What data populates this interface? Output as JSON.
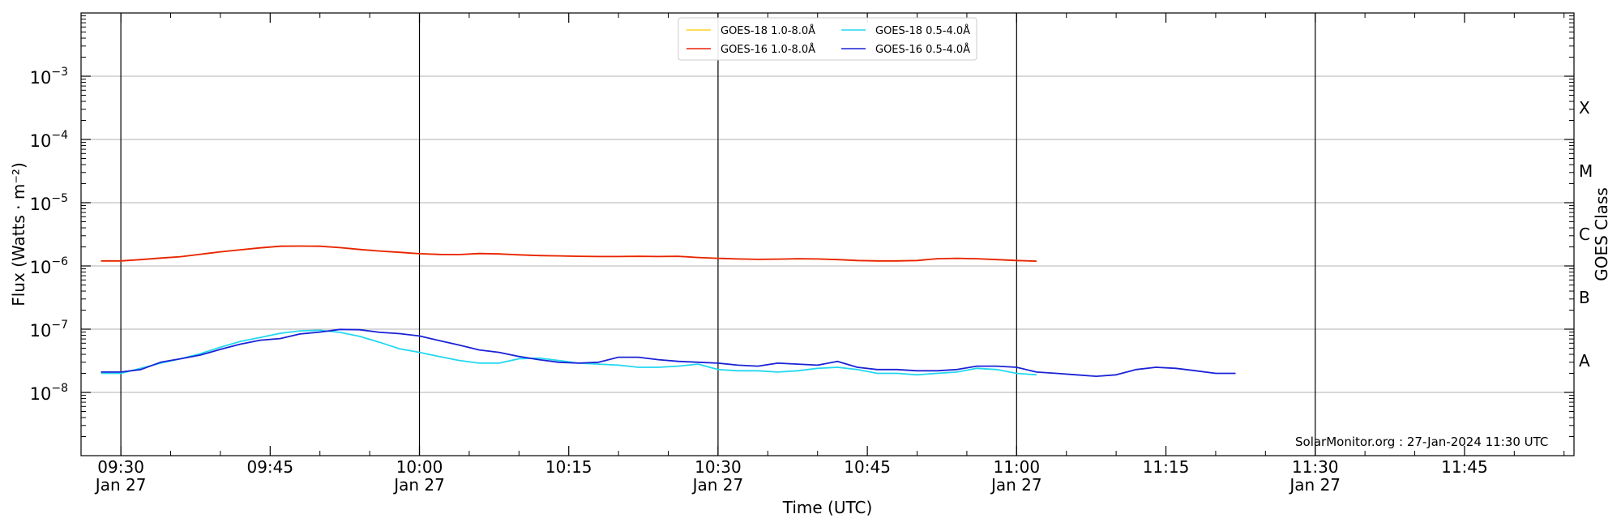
{
  "chart_data": {
    "type": "line",
    "title": "",
    "xlabel": "Time (UTC)",
    "ylabel": "Flux (Watts · m⁻²)",
    "ylabel_right": "GOES Class",
    "yscale": "log",
    "ylim": [
      1e-09,
      0.01
    ],
    "xlim": [
      "09:26",
      "11:56"
    ],
    "grid": "horizontal at decades",
    "legend_placement": "top-center",
    "y_ticks": [
      {
        "exp": -8,
        "base": "10",
        "power": "−8"
      },
      {
        "exp": -7,
        "base": "10",
        "power": "−7"
      },
      {
        "exp": -6,
        "base": "10",
        "power": "−6"
      },
      {
        "exp": -5,
        "base": "10",
        "power": "−5"
      },
      {
        "exp": -4,
        "base": "10",
        "power": "−4"
      },
      {
        "exp": -3,
        "base": "10",
        "power": "−3"
      }
    ],
    "x_ticks": [
      {
        "t": "09:30",
        "label": "09:30",
        "date": "Jan 27"
      },
      {
        "t": "09:45",
        "label": "09:45",
        "date": ""
      },
      {
        "t": "10:00",
        "label": "10:00",
        "date": "Jan 27"
      },
      {
        "t": "10:15",
        "label": "10:15",
        "date": ""
      },
      {
        "t": "10:30",
        "label": "10:30",
        "date": "Jan 27"
      },
      {
        "t": "10:45",
        "label": "10:45",
        "date": ""
      },
      {
        "t": "11:00",
        "label": "11:00",
        "date": "Jan 27"
      },
      {
        "t": "11:15",
        "label": "11:15",
        "date": ""
      },
      {
        "t": "11:30",
        "label": "11:30",
        "date": "Jan 27"
      },
      {
        "t": "11:45",
        "label": "11:45",
        "date": ""
      }
    ],
    "vertical_markers": [
      "09:30",
      "10:00",
      "10:30",
      "11:00",
      "11:30"
    ],
    "goes_classes": [
      {
        "label": "A",
        "flux": 3.16e-08
      },
      {
        "label": "B",
        "flux": 3.16e-07
      },
      {
        "label": "C",
        "flux": 3.16e-06
      },
      {
        "label": "M",
        "flux": 3.16e-05
      },
      {
        "label": "X",
        "flux": 0.000316
      }
    ],
    "annotation": "SolarMonitor.org : 27-Jan-2024 11:30 UTC",
    "series": [
      {
        "name": "GOES-18 1.0-8.0Å",
        "color": "#ffd21f",
        "points": [
          [
            "09:28",
            1.2e-06
          ],
          [
            "09:30",
            1.2e-06
          ],
          [
            "09:32",
            1.26e-06
          ],
          [
            "09:34",
            1.33e-06
          ],
          [
            "09:36",
            1.4e-06
          ],
          [
            "09:38",
            1.53e-06
          ],
          [
            "09:40",
            1.67e-06
          ],
          [
            "09:42",
            1.8e-06
          ],
          [
            "09:44",
            1.93e-06
          ],
          [
            "09:46",
            2.05e-06
          ],
          [
            "09:48",
            2.06e-06
          ],
          [
            "09:50",
            2.05e-06
          ],
          [
            "09:52",
            1.95e-06
          ],
          [
            "09:54",
            1.82e-06
          ],
          [
            "09:56",
            1.72e-06
          ],
          [
            "09:58",
            1.64e-06
          ],
          [
            "10:00",
            1.56e-06
          ],
          [
            "10:02",
            1.52e-06
          ],
          [
            "10:04",
            1.51e-06
          ],
          [
            "10:06",
            1.57e-06
          ],
          [
            "10:08",
            1.55e-06
          ],
          [
            "10:10",
            1.5e-06
          ],
          [
            "10:12",
            1.46e-06
          ],
          [
            "10:14",
            1.44e-06
          ],
          [
            "10:16",
            1.42e-06
          ],
          [
            "10:18",
            1.41e-06
          ],
          [
            "10:20",
            1.41e-06
          ],
          [
            "10:22",
            1.42e-06
          ],
          [
            "10:24",
            1.41e-06
          ],
          [
            "10:26",
            1.42e-06
          ],
          [
            "10:28",
            1.36e-06
          ],
          [
            "10:30",
            1.32e-06
          ],
          [
            "10:32",
            1.29e-06
          ],
          [
            "10:34",
            1.27e-06
          ],
          [
            "10:36",
            1.28e-06
          ],
          [
            "10:38",
            1.3e-06
          ],
          [
            "10:40",
            1.29e-06
          ],
          [
            "10:42",
            1.26e-06
          ],
          [
            "10:44",
            1.22e-06
          ],
          [
            "10:46",
            1.2e-06
          ],
          [
            "10:48",
            1.2e-06
          ],
          [
            "10:50",
            1.22e-06
          ],
          [
            "10:52",
            1.3e-06
          ],
          [
            "10:54",
            1.32e-06
          ],
          [
            "10:56",
            1.3e-06
          ],
          [
            "10:58",
            1.26e-06
          ],
          [
            "11:00",
            1.22e-06
          ],
          [
            "11:02",
            1.19e-06
          ]
        ]
      },
      {
        "name": "GOES-16 1.0-8.0Å",
        "color": "#e8220a",
        "points": [
          [
            "09:28",
            1.2e-06
          ],
          [
            "09:30",
            1.2e-06
          ],
          [
            "09:32",
            1.26e-06
          ],
          [
            "09:34",
            1.33e-06
          ],
          [
            "09:36",
            1.4e-06
          ],
          [
            "09:38",
            1.53e-06
          ],
          [
            "09:40",
            1.67e-06
          ],
          [
            "09:42",
            1.8e-06
          ],
          [
            "09:44",
            1.93e-06
          ],
          [
            "09:46",
            2.05e-06
          ],
          [
            "09:48",
            2.06e-06
          ],
          [
            "09:50",
            2.05e-06
          ],
          [
            "09:52",
            1.95e-06
          ],
          [
            "09:54",
            1.82e-06
          ],
          [
            "09:56",
            1.72e-06
          ],
          [
            "09:58",
            1.64e-06
          ],
          [
            "10:00",
            1.56e-06
          ],
          [
            "10:02",
            1.52e-06
          ],
          [
            "10:04",
            1.51e-06
          ],
          [
            "10:06",
            1.57e-06
          ],
          [
            "10:08",
            1.55e-06
          ],
          [
            "10:10",
            1.5e-06
          ],
          [
            "10:12",
            1.46e-06
          ],
          [
            "10:14",
            1.44e-06
          ],
          [
            "10:16",
            1.42e-06
          ],
          [
            "10:18",
            1.41e-06
          ],
          [
            "10:20",
            1.41e-06
          ],
          [
            "10:22",
            1.42e-06
          ],
          [
            "10:24",
            1.41e-06
          ],
          [
            "10:26",
            1.42e-06
          ],
          [
            "10:28",
            1.36e-06
          ],
          [
            "10:30",
            1.32e-06
          ],
          [
            "10:32",
            1.29e-06
          ],
          [
            "10:34",
            1.27e-06
          ],
          [
            "10:36",
            1.28e-06
          ],
          [
            "10:38",
            1.3e-06
          ],
          [
            "10:40",
            1.29e-06
          ],
          [
            "10:42",
            1.26e-06
          ],
          [
            "10:44",
            1.22e-06
          ],
          [
            "10:46",
            1.2e-06
          ],
          [
            "10:48",
            1.2e-06
          ],
          [
            "10:50",
            1.22e-06
          ],
          [
            "10:52",
            1.3e-06
          ],
          [
            "10:54",
            1.32e-06
          ],
          [
            "10:56",
            1.3e-06
          ],
          [
            "10:58",
            1.26e-06
          ],
          [
            "11:00",
            1.22e-06
          ],
          [
            "11:02",
            1.19e-06
          ]
        ]
      },
      {
        "name": "GOES-18 0.5-4.0Å",
        "color": "#22d8f0",
        "points": [
          [
            "09:28",
            2e-08
          ],
          [
            "09:30",
            2e-08
          ],
          [
            "09:32",
            2.4e-08
          ],
          [
            "09:34",
            2.9e-08
          ],
          [
            "09:36",
            3.4e-08
          ],
          [
            "09:38",
            4.1e-08
          ],
          [
            "09:40",
            5.2e-08
          ],
          [
            "09:42",
            6.4e-08
          ],
          [
            "09:44",
            7.4e-08
          ],
          [
            "09:46",
            8.6e-08
          ],
          [
            "09:48",
            9.4e-08
          ],
          [
            "09:50",
            9.6e-08
          ],
          [
            "09:52",
            8.9e-08
          ],
          [
            "09:54",
            7.7e-08
          ],
          [
            "09:56",
            6.2e-08
          ],
          [
            "09:58",
            4.9e-08
          ],
          [
            "10:00",
            4.3e-08
          ],
          [
            "10:02",
            3.7e-08
          ],
          [
            "10:04",
            3.2e-08
          ],
          [
            "10:06",
            2.9e-08
          ],
          [
            "10:08",
            2.9e-08
          ],
          [
            "10:10",
            3.4e-08
          ],
          [
            "10:12",
            3.5e-08
          ],
          [
            "10:14",
            3.2e-08
          ],
          [
            "10:16",
            2.9e-08
          ],
          [
            "10:18",
            2.8e-08
          ],
          [
            "10:20",
            2.7e-08
          ],
          [
            "10:22",
            2.5e-08
          ],
          [
            "10:24",
            2.5e-08
          ],
          [
            "10:26",
            2.6e-08
          ],
          [
            "10:28",
            2.8e-08
          ],
          [
            "10:30",
            2.3e-08
          ],
          [
            "10:32",
            2.2e-08
          ],
          [
            "10:34",
            2.2e-08
          ],
          [
            "10:36",
            2.1e-08
          ],
          [
            "10:38",
            2.2e-08
          ],
          [
            "10:40",
            2.4e-08
          ],
          [
            "10:42",
            2.5e-08
          ],
          [
            "10:44",
            2.3e-08
          ],
          [
            "10:46",
            2e-08
          ],
          [
            "10:48",
            2e-08
          ],
          [
            "10:50",
            1.9e-08
          ],
          [
            "10:52",
            2e-08
          ],
          [
            "10:54",
            2.1e-08
          ],
          [
            "10:56",
            2.4e-08
          ],
          [
            "10:58",
            2.3e-08
          ],
          [
            "11:00",
            2e-08
          ],
          [
            "11:02",
            1.9e-08
          ]
        ]
      },
      {
        "name": "GOES-16 0.5-4.0Å",
        "color": "#1a22d6",
        "points": [
          [
            "09:28",
            2.1e-08
          ],
          [
            "09:30",
            2.1e-08
          ],
          [
            "09:32",
            2.3e-08
          ],
          [
            "09:34",
            3e-08
          ],
          [
            "09:36",
            3.4e-08
          ],
          [
            "09:38",
            3.9e-08
          ],
          [
            "09:40",
            4.8e-08
          ],
          [
            "09:42",
            5.8e-08
          ],
          [
            "09:44",
            6.7e-08
          ],
          [
            "09:46",
            7.1e-08
          ],
          [
            "09:48",
            8.4e-08
          ],
          [
            "09:50",
            9e-08
          ],
          [
            "09:52",
            9.9e-08
          ],
          [
            "09:54",
            9.8e-08
          ],
          [
            "09:56",
            8.9e-08
          ],
          [
            "09:58",
            8.5e-08
          ],
          [
            "10:00",
            7.8e-08
          ],
          [
            "10:02",
            6.6e-08
          ],
          [
            "10:04",
            5.6e-08
          ],
          [
            "10:06",
            4.7e-08
          ],
          [
            "10:08",
            4.3e-08
          ],
          [
            "10:10",
            3.7e-08
          ],
          [
            "10:12",
            3.3e-08
          ],
          [
            "10:14",
            3e-08
          ],
          [
            "10:16",
            2.9e-08
          ],
          [
            "10:18",
            3e-08
          ],
          [
            "10:20",
            3.6e-08
          ],
          [
            "10:22",
            3.6e-08
          ],
          [
            "10:24",
            3.3e-08
          ],
          [
            "10:26",
            3.1e-08
          ],
          [
            "10:28",
            3e-08
          ],
          [
            "10:30",
            2.9e-08
          ],
          [
            "10:32",
            2.7e-08
          ],
          [
            "10:34",
            2.6e-08
          ],
          [
            "10:36",
            2.9e-08
          ],
          [
            "10:38",
            2.8e-08
          ],
          [
            "10:40",
            2.7e-08
          ],
          [
            "10:42",
            3.1e-08
          ],
          [
            "10:44",
            2.5e-08
          ],
          [
            "10:46",
            2.3e-08
          ],
          [
            "10:48",
            2.3e-08
          ],
          [
            "10:50",
            2.2e-08
          ],
          [
            "10:52",
            2.2e-08
          ],
          [
            "10:54",
            2.3e-08
          ],
          [
            "10:56",
            2.6e-08
          ],
          [
            "10:58",
            2.6e-08
          ],
          [
            "11:00",
            2.5e-08
          ],
          [
            "11:02",
            2.1e-08
          ],
          [
            "11:04",
            2e-08
          ],
          [
            "11:06",
            1.9e-08
          ],
          [
            "11:08",
            1.8e-08
          ],
          [
            "11:10",
            1.9e-08
          ],
          [
            "11:12",
            2.3e-08
          ],
          [
            "11:14",
            2.5e-08
          ],
          [
            "11:16",
            2.4e-08
          ],
          [
            "11:18",
            2.2e-08
          ],
          [
            "11:20",
            2e-08
          ],
          [
            "11:22",
            2e-08
          ]
        ]
      }
    ]
  }
}
